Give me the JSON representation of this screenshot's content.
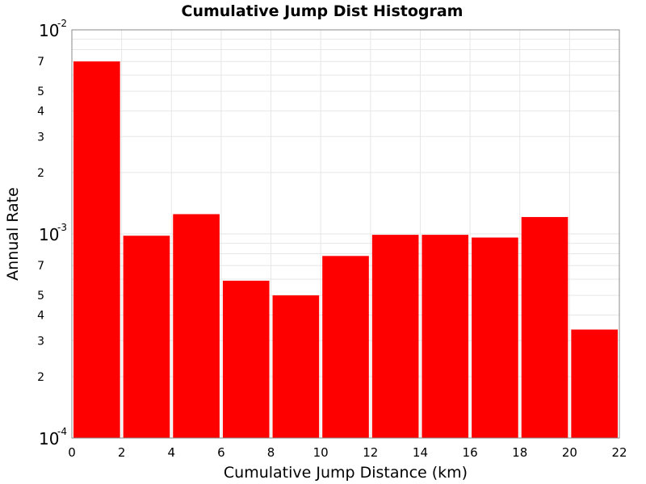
{
  "chart_data": {
    "type": "bar",
    "title": "Cumulative Jump Dist Histogram",
    "xlabel": "Cumulative Jump Distance (km)",
    "ylabel": "Annual Rate",
    "x_scale": "linear",
    "y_scale": "log",
    "xlim": [
      0,
      22
    ],
    "ylim": [
      0.0001,
      0.01
    ],
    "grid": true,
    "bar_color": "#ff0000",
    "x_ticks": [
      "0",
      "2",
      "4",
      "6",
      "8",
      "10",
      "12",
      "14",
      "16",
      "18",
      "20",
      "22"
    ],
    "y_major_ticks": [
      {
        "base": "10",
        "exp": "-2",
        "value": 0.01
      },
      {
        "base": "10",
        "exp": "-3",
        "value": 0.001
      },
      {
        "base": "10",
        "exp": "-4",
        "value": 0.0001
      }
    ],
    "y_minor_tick_labels": [
      {
        "label": "7",
        "value": 0.007
      },
      {
        "label": "5",
        "value": 0.005
      },
      {
        "label": "4",
        "value": 0.004
      },
      {
        "label": "3",
        "value": 0.003
      },
      {
        "label": "2",
        "value": 0.002
      },
      {
        "label": "7",
        "value": 0.0007
      },
      {
        "label": "5",
        "value": 0.0005
      },
      {
        "label": "4",
        "value": 0.0004
      },
      {
        "label": "3",
        "value": 0.0003
      },
      {
        "label": "2",
        "value": 0.0002
      }
    ],
    "bins": [
      {
        "x0": 0,
        "x1": 2,
        "value": 0.007
      },
      {
        "x0": 2,
        "x1": 4,
        "value": 0.00098
      },
      {
        "x0": 4,
        "x1": 6,
        "value": 0.00125
      },
      {
        "x0": 6,
        "x1": 8,
        "value": 0.00059
      },
      {
        "x0": 8,
        "x1": 10,
        "value": 0.0005
      },
      {
        "x0": 10,
        "x1": 12,
        "value": 0.00078
      },
      {
        "x0": 12,
        "x1": 14,
        "value": 0.00099
      },
      {
        "x0": 14,
        "x1": 16,
        "value": 0.00099
      },
      {
        "x0": 16,
        "x1": 18,
        "value": 0.00096
      },
      {
        "x0": 18,
        "x1": 20,
        "value": 0.00121
      },
      {
        "x0": 20,
        "x1": 22,
        "value": 0.00034
      }
    ]
  }
}
